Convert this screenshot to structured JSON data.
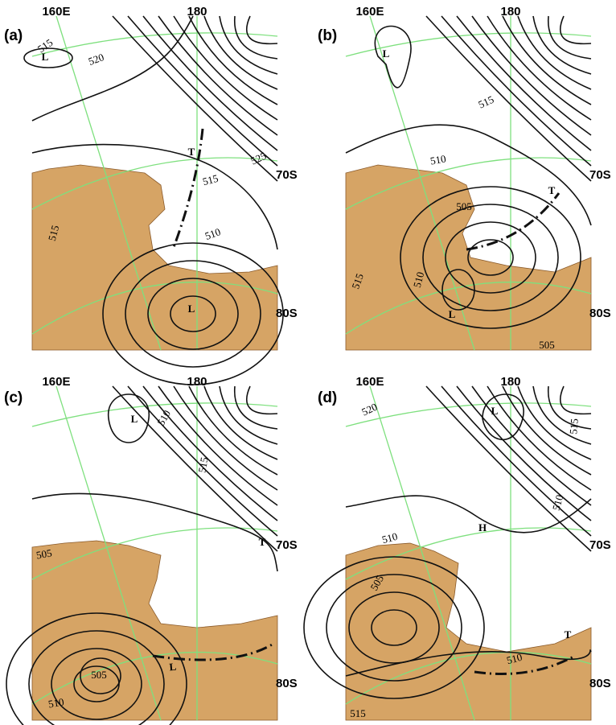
{
  "panels": [
    {
      "label": "(a)",
      "lon_labels": [
        "160E",
        "180"
      ],
      "lat_labels": [
        "70S",
        "80S"
      ],
      "annotations": [
        "L",
        515,
        520,
        "T",
        525,
        515,
        510,
        515,
        "L"
      ]
    },
    {
      "label": "(b)",
      "lon_labels": [
        "160E",
        "180"
      ],
      "lat_labels": [
        "70S",
        "80S"
      ],
      "annotations": [
        "L",
        515,
        510,
        505,
        "T",
        515,
        510,
        "L",
        505
      ]
    },
    {
      "label": "(c)",
      "lon_labels": [
        "160E",
        "180"
      ],
      "lat_labels": [
        "70S",
        "80S"
      ],
      "annotations": [
        "L",
        510,
        515,
        "T",
        505,
        "L",
        505,
        510
      ]
    },
    {
      "label": "(d)",
      "lon_labels": [
        "160E",
        "180"
      ],
      "lat_labels": [
        "70S",
        "80S"
      ],
      "annotations": [
        520,
        "L",
        515,
        510,
        510,
        "H",
        505,
        "T",
        510,
        515
      ]
    }
  ]
}
